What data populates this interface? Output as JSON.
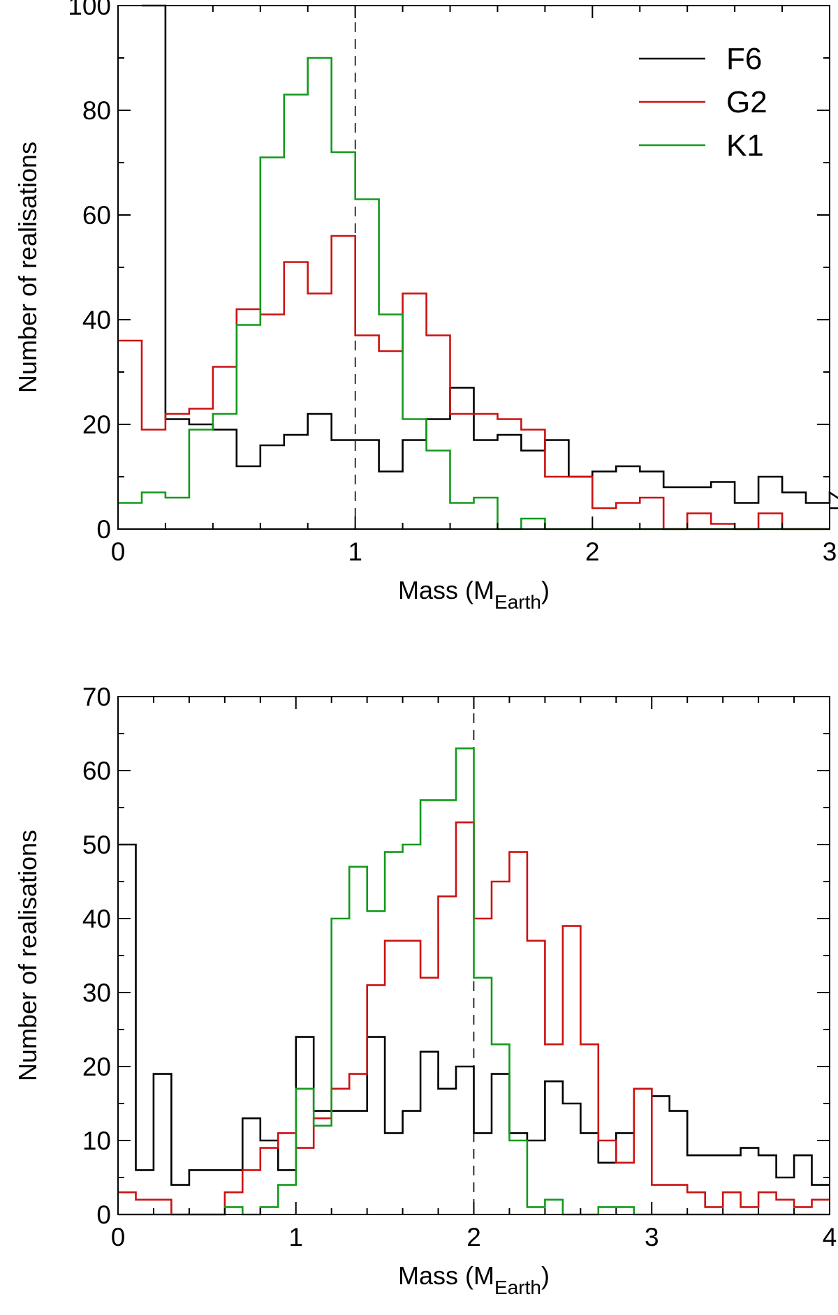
{
  "colors": {
    "F6": "#000000",
    "G2": "#cc1111",
    "K1": "#129a1b",
    "axis": "#000000",
    "reference_line": "#000000"
  },
  "chart_data": [
    {
      "type": "histogram",
      "xlabel": {
        "prefix": "Mass (M",
        "subscript": "Earth",
        "suffix": ")"
      },
      "ylabel": "Number of realisations",
      "xlim": [
        0,
        3
      ],
      "ylim": [
        0,
        100
      ],
      "xticks": [
        0,
        1,
        2,
        3
      ],
      "xtick_labels": [
        "0",
        "1",
        "2",
        "3"
      ],
      "yticks": [
        0,
        20,
        40,
        60,
        80,
        100
      ],
      "ytick_labels": [
        "0",
        "20",
        "40",
        "60",
        "80",
        "100"
      ],
      "bin_width": 0.1,
      "reference_line_x": 1,
      "legend": {
        "position": "top-right",
        "entries": [
          "F6",
          "G2",
          "K1"
        ]
      },
      "series": [
        {
          "name": "F6",
          "x_start": 0.1,
          "clipped_first_bin": true,
          "values": [
            100,
            21,
            20,
            19,
            12,
            16,
            18,
            22,
            17,
            17,
            11,
            17,
            21,
            27,
            17,
            18,
            15,
            17,
            10,
            11,
            12,
            11,
            8,
            8,
            9,
            5,
            10,
            7,
            5,
            7,
            4
          ]
        },
        {
          "name": "G2",
          "x_start": 0.0,
          "values": [
            36,
            19,
            22,
            23,
            31,
            42,
            41,
            51,
            45,
            56,
            37,
            34,
            45,
            37,
            22,
            22,
            21,
            19,
            10,
            10,
            4,
            5,
            6,
            0,
            3,
            1,
            0,
            3,
            0,
            0
          ]
        },
        {
          "name": "K1",
          "x_start": 0.0,
          "values": [
            5,
            7,
            6,
            19,
            22,
            39,
            71,
            83,
            90,
            72,
            63,
            41,
            21,
            15,
            5,
            6,
            0,
            2,
            0,
            0,
            0,
            0,
            0,
            0,
            0,
            0,
            0,
            0,
            0,
            0
          ]
        }
      ]
    },
    {
      "type": "histogram",
      "xlabel": {
        "prefix": "Mass (M",
        "subscript": "Earth",
        "suffix": ")"
      },
      "ylabel": "Number of realisations",
      "xlim": [
        0,
        4
      ],
      "ylim": [
        0,
        70
      ],
      "xticks": [
        0,
        1,
        2,
        3,
        4
      ],
      "xtick_labels": [
        "0",
        "1",
        "2",
        "3",
        "4"
      ],
      "yticks": [
        0,
        10,
        20,
        30,
        40,
        50,
        60,
        70
      ],
      "ytick_labels": [
        "0",
        "10",
        "20",
        "30",
        "40",
        "50",
        "60",
        "70"
      ],
      "bin_width": 0.1,
      "reference_line_x": 2,
      "series": [
        {
          "name": "F6",
          "x_start": 0.0,
          "values": [
            50,
            6,
            19,
            4,
            6,
            6,
            6,
            13,
            10,
            6,
            24,
            14,
            14,
            14,
            24,
            11,
            14,
            22,
            17,
            20,
            11,
            19,
            11,
            10,
            18,
            15,
            11,
            7,
            11,
            17,
            16,
            14,
            8,
            8,
            8,
            9,
            8,
            5,
            8,
            4
          ]
        },
        {
          "name": "G2",
          "x_start": 0.0,
          "values": [
            3,
            2,
            2,
            0,
            0,
            0,
            3,
            6,
            9,
            11,
            9,
            13,
            17,
            19,
            31,
            37,
            37,
            32,
            43,
            53,
            40,
            45,
            49,
            37,
            23,
            39,
            23,
            10,
            7,
            17,
            4,
            4,
            3,
            1,
            3,
            1,
            3,
            2,
            1,
            2
          ]
        },
        {
          "name": "K1",
          "x_start": 0.0,
          "values": [
            0,
            0,
            0,
            0,
            0,
            0,
            1,
            0,
            1,
            4,
            17,
            12,
            40,
            47,
            41,
            49,
            50,
            56,
            56,
            63,
            32,
            23,
            10,
            1,
            2,
            0,
            0,
            1,
            1,
            0,
            0,
            0,
            0,
            0,
            0,
            0,
            0,
            0,
            0,
            0
          ]
        }
      ]
    }
  ]
}
